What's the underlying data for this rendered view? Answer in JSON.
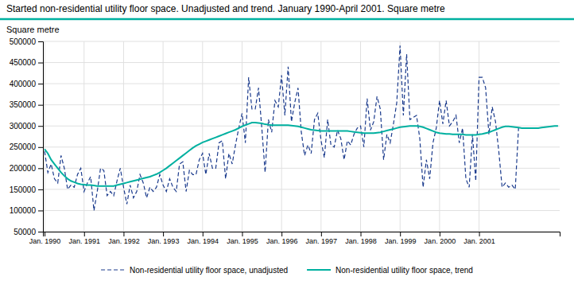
{
  "chart_data": {
    "type": "line",
    "title": "Started non-residential utility floor space. Unadjusted and trend. January 1990-April 2001. Square metre",
    "ylabel": "Square metre",
    "categories": [
      "Jan. 1990",
      null,
      null,
      null,
      null,
      null,
      null,
      null,
      null,
      null,
      null,
      null,
      "Jan. 1991",
      null,
      null,
      null,
      null,
      null,
      null,
      null,
      null,
      null,
      null,
      null,
      "Jan. 1992",
      null,
      null,
      null,
      null,
      null,
      null,
      null,
      null,
      null,
      null,
      null,
      "Jan. 1993",
      null,
      null,
      null,
      null,
      null,
      null,
      null,
      null,
      null,
      null,
      null,
      "Jan. 1994",
      null,
      null,
      null,
      null,
      null,
      null,
      null,
      null,
      null,
      null,
      null,
      "Jan. 1995",
      null,
      null,
      null,
      null,
      null,
      null,
      null,
      null,
      null,
      null,
      null,
      "Jan. 1996",
      null,
      null,
      null,
      null,
      null,
      null,
      null,
      null,
      null,
      null,
      null,
      "Jan. 1997",
      null,
      null,
      null,
      null,
      null,
      null,
      null,
      null,
      null,
      null,
      null,
      "Jan. 1998",
      null,
      null,
      null,
      null,
      null,
      null,
      null,
      null,
      null,
      null,
      null,
      "Jan. 1999",
      null,
      null,
      null,
      null,
      null,
      null,
      null,
      null,
      null,
      null,
      null,
      "Jan. 2000",
      null,
      null,
      null,
      null,
      null,
      null,
      null,
      null,
      null,
      null,
      null,
      "Jan. 2001",
      null,
      null,
      null,
      null,
      null,
      null,
      null,
      null,
      null,
      null,
      null,
      null,
      null,
      null,
      null,
      null,
      null,
      null,
      null,
      null,
      null,
      null,
      null,
      null
    ],
    "series": [
      {
        "name": "Non-residential utility floor space, unadjusted",
        "color": "#1a3a8c",
        "line_style": "dashed",
        "values": [
          240000,
          190000,
          210000,
          175000,
          165000,
          230000,
          200000,
          150000,
          160000,
          155000,
          185000,
          200000,
          145000,
          165000,
          180000,
          100000,
          145000,
          200000,
          195000,
          135000,
          145000,
          135000,
          170000,
          200000,
          155000,
          115000,
          160000,
          130000,
          145000,
          185000,
          165000,
          130000,
          155000,
          145000,
          155000,
          185000,
          160000,
          145000,
          175000,
          155000,
          145000,
          210000,
          215000,
          145000,
          195000,
          185000,
          185000,
          220000,
          235000,
          185000,
          235000,
          200000,
          200000,
          260000,
          265000,
          175000,
          235000,
          210000,
          255000,
          295000,
          330000,
          260000,
          415000,
          340000,
          340000,
          390000,
          295000,
          190000,
          315000,
          285000,
          360000,
          345000,
          420000,
          325000,
          440000,
          310000,
          355000,
          390000,
          285000,
          230000,
          255000,
          235000,
          315000,
          330000,
          265000,
          225000,
          315000,
          255000,
          250000,
          290000,
          270000,
          220000,
          265000,
          255000,
          280000,
          295000,
          300000,
          250000,
          365000,
          290000,
          310000,
          370000,
          340000,
          220000,
          280000,
          260000,
          305000,
          355000,
          490000,
          325000,
          470000,
          315000,
          320000,
          325000,
          270000,
          155000,
          220000,
          175000,
          260000,
          295000,
          360000,
          305000,
          360000,
          300000,
          310000,
          325000,
          260000,
          295000,
          175000,
          155000,
          280000,
          170000,
          415000,
          415000,
          390000,
          280000,
          345000,
          310000,
          240000,
          155000,
          165000,
          155000,
          160000,
          150000,
          295000,
          null,
          null,
          null,
          null,
          null,
          null,
          null,
          null,
          null,
          null,
          null,
          null
        ]
      },
      {
        "name": "Non-residential utility floor space, trend",
        "color": "#00b0a0",
        "line_style": "solid",
        "values": [
          245000,
          235000,
          220000,
          210000,
          200000,
          190000,
          182000,
          175000,
          170000,
          167000,
          164000,
          162000,
          161000,
          160000,
          160000,
          159000,
          158000,
          158000,
          158000,
          158000,
          158000,
          158000,
          160000,
          162000,
          164000,
          166000,
          168000,
          170000,
          172000,
          174000,
          176000,
          178000,
          180000,
          183000,
          186000,
          190000,
          195000,
          200000,
          206000,
          212000,
          218000,
          224000,
          230000,
          236000,
          242000,
          248000,
          253000,
          257000,
          261000,
          264000,
          267000,
          270000,
          273000,
          276000,
          279000,
          282000,
          285000,
          288000,
          291000,
          295000,
          299000,
          302000,
          305000,
          308000,
          308000,
          307000,
          306000,
          304000,
          303000,
          302000,
          302000,
          302000,
          302000,
          302000,
          302000,
          301000,
          300000,
          299000,
          297000,
          295000,
          293000,
          291000,
          290000,
          289000,
          288000,
          288000,
          288000,
          288000,
          288000,
          288000,
          288000,
          288000,
          288000,
          287000,
          286000,
          285000,
          284000,
          283000,
          283000,
          283000,
          283000,
          284000,
          285000,
          287000,
          289000,
          291000,
          293000,
          295000,
          297000,
          298000,
          299000,
          300000,
          300000,
          300000,
          299000,
          297000,
          294000,
          291000,
          288000,
          285000,
          283000,
          282000,
          281000,
          281000,
          280000,
          280000,
          280000,
          280000,
          279000,
          279000,
          279000,
          279000,
          280000,
          281000,
          283000,
          285000,
          288000,
          291000,
          294000,
          297000,
          299000,
          299000,
          298000,
          297000,
          296000,
          295000,
          295000,
          295000,
          295000,
          295000,
          295000,
          296000,
          297000,
          298000,
          299000,
          300000,
          300000
        ]
      }
    ],
    "ylim": [
      50000,
      500000
    ],
    "yticks": [
      50000,
      100000,
      150000,
      200000,
      250000,
      300000,
      350000,
      400000,
      450000,
      500000
    ],
    "grid": true,
    "legend": "bottom"
  }
}
